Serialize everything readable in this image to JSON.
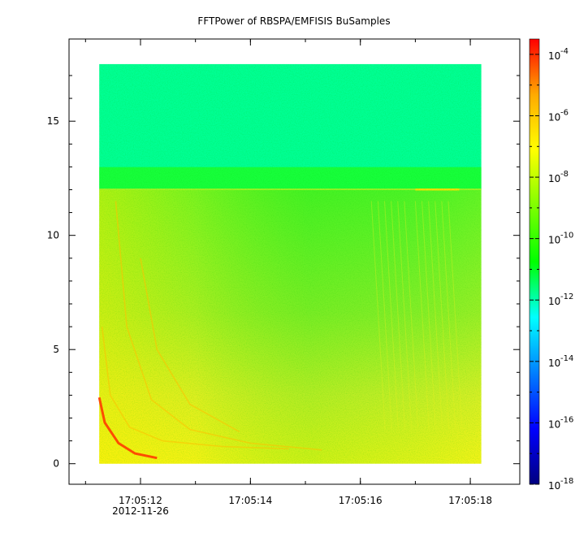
{
  "chart_data": {
    "type": "heatmap",
    "title": "FFTPower of RBSPA/EMFISIS  BuSamples",
    "xlabel": "",
    "ylabel": "",
    "x_ticks": [
      {
        "value": 12,
        "label": "17:05:12"
      },
      {
        "value": 14,
        "label": "17:05:14"
      },
      {
        "value": 16,
        "label": "17:05:16"
      },
      {
        "value": 18,
        "label": "17:05:18"
      }
    ],
    "x_date_label": "2012-11-26",
    "xlim": [
      10.7,
      18.9
    ],
    "y_ticks": [
      0,
      5,
      10,
      15
    ],
    "ylim": [
      -0.9,
      18.6
    ],
    "data_extent": {
      "x": [
        11.25,
        18.2
      ],
      "y": [
        0,
        17.5
      ]
    },
    "upper_band_y": [
      12.0,
      17.5
    ],
    "colorbar": {
      "scale": "log",
      "range_exponent": [
        -18,
        -3.5
      ],
      "tick_base": "10",
      "tick_exponents": [
        "-18",
        "-16",
        "-14",
        "-12",
        "-10",
        "-8",
        "-6",
        "-4"
      ],
      "colors": [
        "#00007f",
        "#0000ff",
        "#007fff",
        "#00ffff",
        "#00ff00",
        "#7fff00",
        "#ffff00",
        "#ffaa00",
        "#ff0000"
      ]
    },
    "approx_levels": {
      "upper_band": -11.8,
      "upper_left_mid": -10.2,
      "lower_band": -8.5,
      "whistler_traces": -5.8
    },
    "grid": false,
    "legend": "colorbar-right"
  }
}
